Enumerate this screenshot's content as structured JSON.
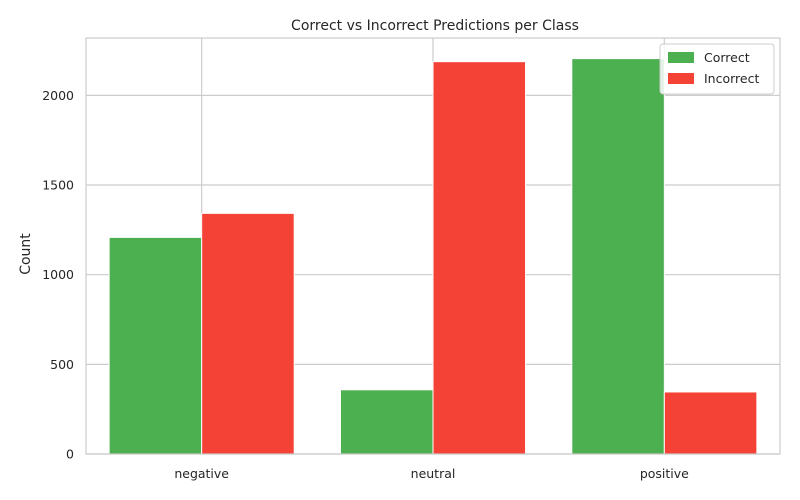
{
  "chart_data": {
    "type": "bar",
    "title": "Correct vs Incorrect Predictions per Class",
    "xlabel": "",
    "ylabel": "Count",
    "categories": [
      "negative",
      "neutral",
      "positive"
    ],
    "series": [
      {
        "name": "Correct",
        "color": "#4caf50",
        "values": [
          1208,
          358,
          2205
        ]
      },
      {
        "name": "Incorrect",
        "color": "#f44336",
        "values": [
          1342,
          2188,
          346
        ]
      }
    ],
    "ylim": [
      0,
      2320
    ],
    "yticks": [
      0,
      500,
      1000,
      1500,
      2000
    ],
    "grid": true,
    "legend_position": "top-right"
  }
}
